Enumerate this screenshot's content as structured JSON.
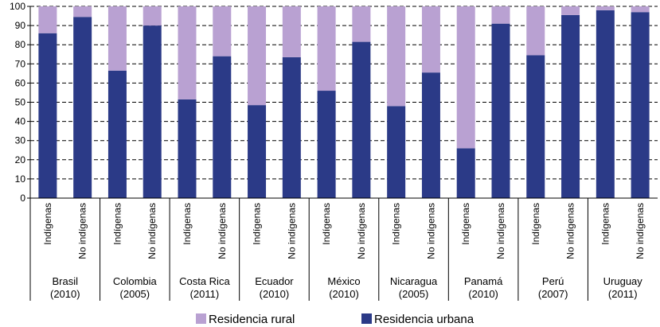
{
  "chart_data": {
    "type": "bar",
    "stacked": true,
    "ylim": [
      0,
      100
    ],
    "yticks": [
      0,
      10,
      20,
      30,
      40,
      50,
      60,
      70,
      80,
      90,
      100
    ],
    "grid": "horizontal dashed",
    "legend_position": "bottom",
    "groups": [
      {
        "name_line1": "Brasil",
        "name_line2": "(2010)"
      },
      {
        "name_line1": "Colombia",
        "name_line2": "(2005)"
      },
      {
        "name_line1": "Costa Rica",
        "name_line2": "(2011)"
      },
      {
        "name_line1": "Ecuador",
        "name_line2": "(2010)"
      },
      {
        "name_line1": "México",
        "name_line2": "(2010)"
      },
      {
        "name_line1": "Nicaragua",
        "name_line2": "(2005)"
      },
      {
        "name_line1": "Panamá",
        "name_line2": "(2010)"
      },
      {
        "name_line1": "Perú",
        "name_line2": "(2007)"
      },
      {
        "name_line1": "Uruguay",
        "name_line2": "(2011)"
      }
    ],
    "categories": [
      "Indígenas",
      "No indígenas"
    ],
    "series": [
      {
        "name": "Residencia urbana",
        "color": "#2b3a87",
        "values": [
          [
            86,
            94.5
          ],
          [
            66.5,
            90
          ],
          [
            51.5,
            74
          ],
          [
            48.5,
            73.5
          ],
          [
            56,
            81.5
          ],
          [
            48,
            65.5
          ],
          [
            26,
            91
          ],
          [
            74.5,
            95.5
          ],
          [
            98,
            97
          ]
        ]
      },
      {
        "name": "Residencia rural",
        "color": "#b9a1d2",
        "values": [
          [
            14,
            5.5
          ],
          [
            33.5,
            10
          ],
          [
            48.5,
            26
          ],
          [
            51.5,
            26.5
          ],
          [
            44,
            18.5
          ],
          [
            52,
            34.5
          ],
          [
            74,
            9
          ],
          [
            25.5,
            4.5
          ],
          [
            2,
            3
          ]
        ]
      }
    ],
    "legend": [
      {
        "label": "Residencia rural",
        "color": "#b9a1d2"
      },
      {
        "label": "Residencia urbana",
        "color": "#2b3a87"
      }
    ]
  }
}
